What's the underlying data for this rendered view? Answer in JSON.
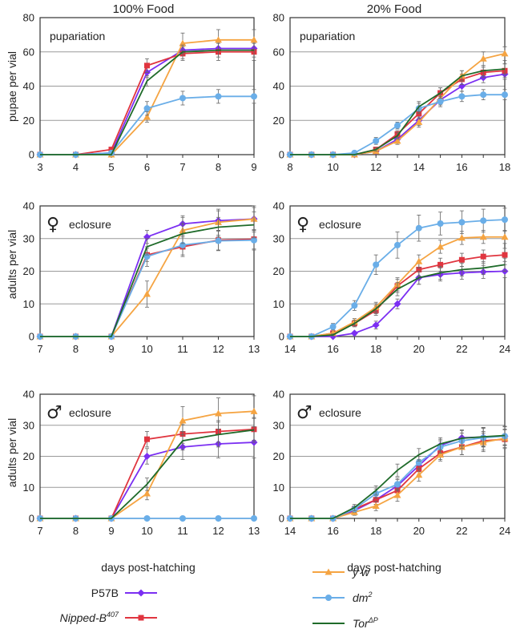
{
  "column_titles": [
    "100% Food",
    "20% Food"
  ],
  "axis_labels": {
    "pupae": "pupae per vial",
    "adults": "adults per vial",
    "x": "days post-hatching"
  },
  "legend": [
    {
      "key": "p57b",
      "label": "P57B",
      "sup": "",
      "color": "#7b2ff2",
      "marker": "diamond"
    },
    {
      "key": "nipped",
      "label": "Nipped-B",
      "sup": "407",
      "color": "#e0353f",
      "marker": "square",
      "italic": true
    },
    {
      "key": "yw",
      "label": "y w",
      "sup": "",
      "color": "#f5a442",
      "marker": "triangle",
      "italic": true
    },
    {
      "key": "dm2",
      "label": "dm",
      "sup": "2",
      "color": "#6aaee8",
      "marker": "circle",
      "italic": true
    },
    {
      "key": "tor",
      "label": "Tor",
      "sup": "ΔP",
      "color": "#1f6b2a",
      "marker": "none",
      "italic": true
    }
  ],
  "chart_data": [
    {
      "type": "line",
      "panel_label": "pupariation",
      "symbol": "",
      "x": [
        3,
        4,
        5,
        6,
        7,
        8,
        9
      ],
      "xlim": [
        3,
        9
      ],
      "ylim": [
        0,
        80
      ],
      "yticks": [
        0,
        20,
        40,
        60,
        80
      ],
      "series": [
        {
          "name": "P57B",
          "values": [
            0,
            0,
            1,
            48,
            61,
            62,
            62
          ],
          "err": [
            0,
            0,
            0,
            3,
            3,
            3,
            3
          ]
        },
        {
          "name": "Nipped-B407",
          "values": [
            0,
            0,
            3,
            52,
            59,
            60,
            60
          ],
          "err": [
            0,
            0,
            1,
            4,
            4,
            5,
            5
          ]
        },
        {
          "name": "y w",
          "values": [
            0,
            0,
            0,
            22,
            65,
            67,
            67
          ],
          "err": [
            0,
            0,
            0,
            3,
            6,
            6,
            6
          ]
        },
        {
          "name": "dm2",
          "values": [
            0,
            0,
            1,
            27,
            33,
            34,
            34
          ],
          "err": [
            0,
            0,
            0,
            4,
            4,
            4,
            4
          ]
        },
        {
          "name": "TorΔP",
          "values": [
            0,
            0,
            0,
            43,
            60,
            61,
            61
          ],
          "err": [
            0,
            0,
            0,
            3,
            4,
            4,
            4
          ]
        }
      ]
    },
    {
      "type": "line",
      "panel_label": "pupariation",
      "symbol": "",
      "x": [
        8,
        9,
        10,
        11,
        12,
        13,
        14,
        15,
        16,
        17,
        18
      ],
      "xlim": [
        8,
        18
      ],
      "ylim": [
        0,
        80
      ],
      "yticks": [
        0,
        20,
        40,
        60,
        80
      ],
      "series": [
        {
          "name": "P57B",
          "values": [
            0,
            0,
            0,
            0,
            2,
            9,
            20,
            32,
            40,
            45,
            47
          ],
          "err": [
            0,
            0,
            0,
            0,
            1,
            2,
            3,
            3,
            3,
            3,
            3
          ]
        },
        {
          "name": "Nipped-B407",
          "values": [
            0,
            0,
            0,
            0,
            3,
            12,
            24,
            36,
            44,
            48,
            49
          ],
          "err": [
            0,
            0,
            0,
            0,
            1,
            2,
            3,
            3,
            3,
            3,
            4
          ]
        },
        {
          "name": "y w",
          "values": [
            0,
            0,
            0,
            0,
            2,
            8,
            19,
            33,
            46,
            56,
            59
          ],
          "err": [
            0,
            0,
            0,
            0,
            1,
            2,
            3,
            3,
            3,
            4,
            4
          ]
        },
        {
          "name": "dm2",
          "values": [
            0,
            0,
            0,
            1,
            8,
            17,
            27,
            31,
            34,
            35,
            35
          ],
          "err": [
            0,
            0,
            0,
            1,
            2,
            2,
            3,
            3,
            3,
            3,
            3
          ]
        },
        {
          "name": "TorΔP",
          "values": [
            0,
            0,
            0,
            0,
            3,
            11,
            28,
            36,
            46,
            49,
            50
          ],
          "err": [
            0,
            0,
            0,
            0,
            1,
            2,
            3,
            3,
            3,
            3,
            3
          ]
        }
      ]
    },
    {
      "type": "line",
      "panel_label": "eclosure",
      "symbol": "♀",
      "x": [
        7,
        8,
        9,
        10,
        11,
        12,
        13
      ],
      "xlim": [
        7,
        13
      ],
      "ylim": [
        0,
        40
      ],
      "yticks": [
        0,
        10,
        20,
        30,
        40
      ],
      "series": [
        {
          "name": "P57B",
          "values": [
            0,
            0,
            0,
            30.5,
            34.5,
            35.5,
            36
          ],
          "err": [
            0,
            0,
            0,
            2,
            2.5,
            3,
            3.5
          ]
        },
        {
          "name": "Nipped-B407",
          "values": [
            0,
            0,
            0,
            25,
            27.5,
            29.5,
            29.8
          ],
          "err": [
            0,
            0,
            0,
            2,
            3,
            3,
            3
          ]
        },
        {
          "name": "y w",
          "values": [
            0,
            0,
            0,
            13,
            32.5,
            35,
            36
          ],
          "err": [
            0,
            0,
            0,
            4,
            4,
            4,
            4
          ]
        },
        {
          "name": "dm2",
          "values": [
            0,
            0,
            0,
            24.5,
            28,
            29.3,
            29.5
          ],
          "err": [
            0,
            0,
            0,
            3,
            3,
            3,
            3
          ]
        },
        {
          "name": "TorΔP",
          "values": [
            0,
            0,
            0,
            27.5,
            31.5,
            33.5,
            34.2
          ],
          "err": [
            0,
            0,
            0,
            2.5,
            3,
            3,
            4
          ]
        }
      ]
    },
    {
      "type": "line",
      "panel_label": "eclosure",
      "symbol": "♀",
      "x": [
        14,
        15,
        16,
        17,
        18,
        19,
        20,
        21,
        22,
        23,
        24
      ],
      "xlim": [
        14,
        24
      ],
      "ylim": [
        0,
        40
      ],
      "yticks": [
        0,
        10,
        20,
        30,
        40
      ],
      "series": [
        {
          "name": "P57B",
          "values": [
            0,
            0,
            0,
            1,
            3.5,
            10,
            18,
            19,
            19.5,
            19.8,
            20
          ],
          "err": [
            0,
            0,
            0,
            0.5,
            1.2,
            1.5,
            2,
            2,
            2,
            2,
            2
          ]
        },
        {
          "name": "Nipped-B407",
          "values": [
            0,
            0,
            1,
            4,
            8,
            15.5,
            20.5,
            22,
            23.5,
            24.5,
            25
          ],
          "err": [
            0,
            0,
            0.5,
            1,
            1.5,
            2,
            2,
            2,
            2,
            2,
            2
          ]
        },
        {
          "name": "y w",
          "values": [
            0,
            0,
            1,
            4.5,
            9,
            16,
            23,
            27.5,
            30.2,
            30.5,
            30.5
          ],
          "err": [
            0,
            0,
            0.5,
            1,
            1.5,
            2,
            2,
            2,
            2,
            2,
            2
          ]
        },
        {
          "name": "dm2",
          "values": [
            0,
            0,
            3,
            9.5,
            22,
            28,
            33.2,
            34.6,
            35,
            35.5,
            35.8
          ],
          "err": [
            0,
            0,
            1,
            1.5,
            3,
            4,
            4,
            3.5,
            3.5,
            3.5,
            3.5
          ]
        },
        {
          "name": "TorΔP",
          "values": [
            0,
            0,
            0.5,
            4,
            8.5,
            14.5,
            18,
            19.5,
            20.5,
            21,
            22
          ],
          "err": [
            0,
            0,
            0.3,
            1,
            1.5,
            2,
            2,
            2,
            2,
            2,
            2
          ]
        }
      ]
    },
    {
      "type": "line",
      "panel_label": "eclosure",
      "symbol": "♂",
      "x": [
        7,
        8,
        9,
        10,
        11,
        12,
        13
      ],
      "xlim": [
        7,
        13
      ],
      "ylim": [
        0,
        40
      ],
      "yticks": [
        0,
        10,
        20,
        30,
        40
      ],
      "series": [
        {
          "name": "P57B",
          "values": [
            0,
            0,
            0,
            20,
            23,
            24,
            24.5
          ],
          "err": [
            0,
            0,
            0,
            2.5,
            4,
            4.5,
            5
          ]
        },
        {
          "name": "Nipped-B407",
          "values": [
            0,
            0,
            0,
            25.5,
            27.2,
            28,
            28.7
          ],
          "err": [
            0,
            0,
            0,
            2.5,
            3,
            3.5,
            3.5
          ]
        },
        {
          "name": "y w",
          "values": [
            0,
            0,
            0,
            8,
            31.5,
            33.8,
            34.5
          ],
          "err": [
            0,
            0,
            0,
            2,
            4.5,
            5,
            5
          ]
        },
        {
          "name": "dm2",
          "values": [
            0,
            0,
            0,
            0,
            0,
            0,
            0
          ],
          "err": [
            0,
            0,
            0,
            0,
            0,
            0,
            0
          ]
        },
        {
          "name": "TorΔP",
          "values": [
            0,
            0,
            0,
            11,
            25,
            27,
            28.5
          ],
          "err": [
            0,
            0,
            0,
            2,
            3,
            4,
            4
          ]
        }
      ]
    },
    {
      "type": "line",
      "panel_label": "eclosure",
      "symbol": "♂",
      "x": [
        14,
        15,
        16,
        17,
        18,
        19,
        20,
        21,
        22,
        23,
        24
      ],
      "xlim": [
        14,
        24
      ],
      "ylim": [
        0,
        40
      ],
      "yticks": [
        0,
        10,
        20,
        30,
        40
      ],
      "series": [
        {
          "name": "P57B",
          "values": [
            0,
            0,
            0,
            2.5,
            6,
            10.5,
            17,
            23.5,
            26,
            26.2,
            26.5
          ],
          "err": [
            0,
            0,
            0,
            1,
            1.5,
            2,
            2,
            2,
            2.5,
            3,
            3
          ]
        },
        {
          "name": "Nipped-B407",
          "values": [
            0,
            0,
            0,
            3,
            6,
            9,
            16,
            21,
            23,
            25,
            25.5
          ],
          "err": [
            0,
            0,
            0,
            1,
            1.5,
            2,
            2,
            2,
            2.5,
            3,
            3
          ]
        },
        {
          "name": "y w",
          "values": [
            0,
            0,
            0,
            2,
            4,
            7.5,
            14,
            20.5,
            23,
            24.5,
            25.8
          ],
          "err": [
            0,
            0,
            0,
            1,
            1.5,
            2,
            2,
            2,
            2.5,
            3,
            3
          ]
        },
        {
          "name": "dm2",
          "values": [
            0,
            0,
            0,
            3,
            8,
            11,
            18,
            23,
            25,
            26,
            26.5
          ],
          "err": [
            0,
            0,
            0,
            1,
            1.5,
            2,
            2,
            2,
            2.5,
            3,
            3
          ]
        },
        {
          "name": "TorΔP",
          "values": [
            0,
            0,
            0,
            3.5,
            9,
            15.5,
            20.5,
            24,
            25.8,
            26.3,
            26.7
          ],
          "err": [
            0,
            0,
            0,
            1,
            1.5,
            2,
            2,
            2,
            2.5,
            3,
            3
          ]
        }
      ]
    }
  ]
}
